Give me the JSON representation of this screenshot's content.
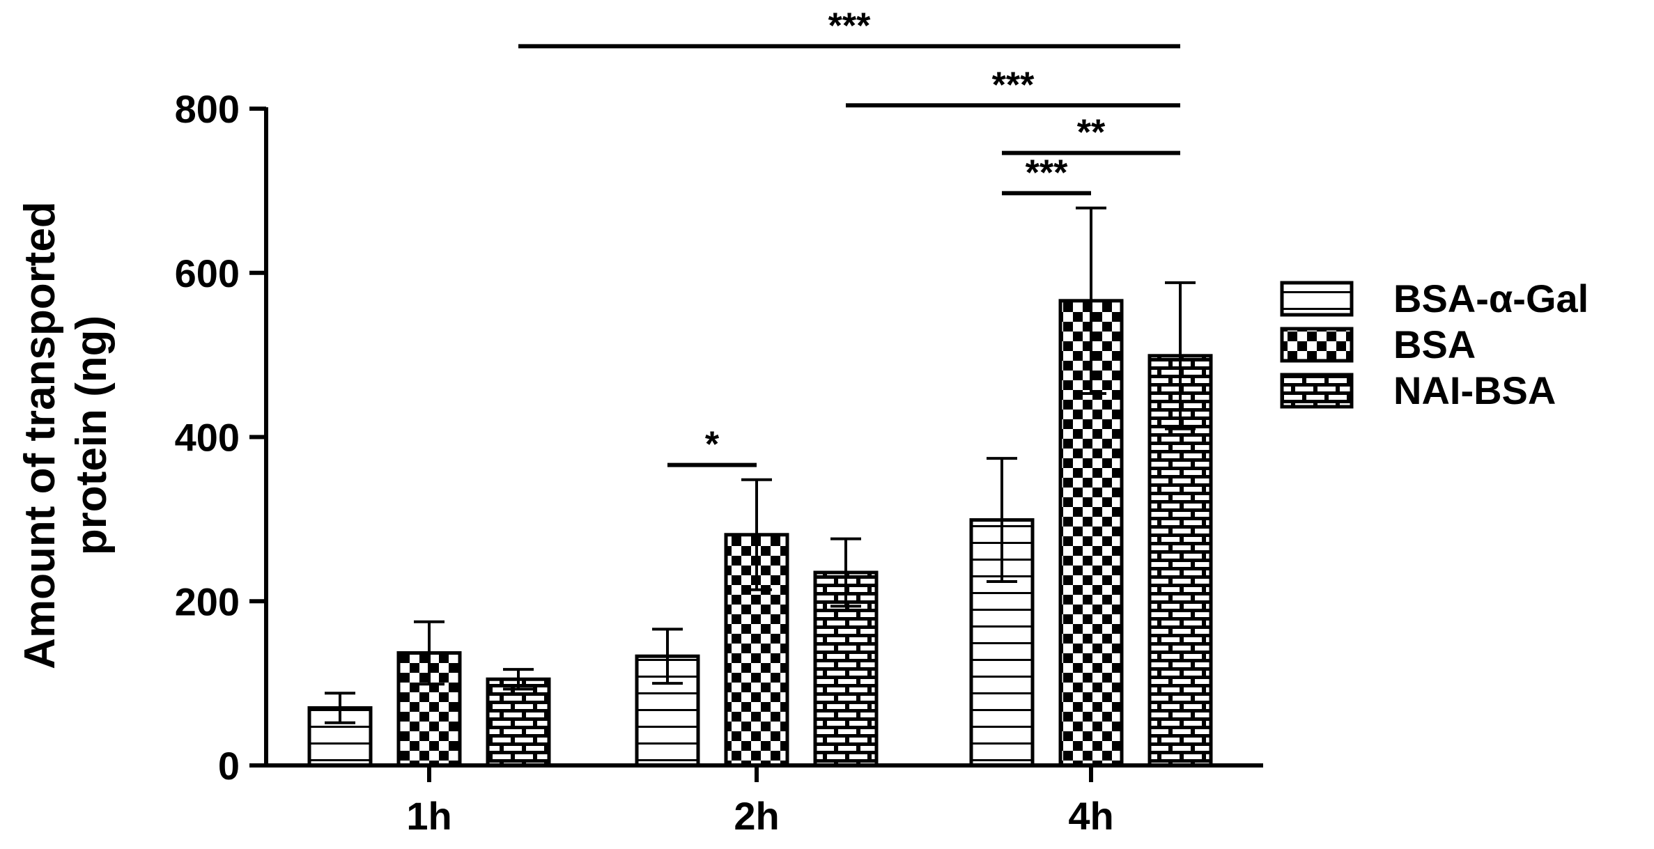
{
  "chart_data": {
    "type": "bar",
    "title": "",
    "xlabel": "",
    "ylabel_lines": [
      "Amount of transported",
      "protein (ng)"
    ],
    "ylim": [
      0,
      800
    ],
    "yticks": [
      "0",
      "200",
      "400",
      "600",
      "800"
    ],
    "categories": [
      "1h",
      "2h",
      "4h"
    ],
    "series": [
      {
        "name": "BSA-α-Gal",
        "pattern": "horizontal-stripes",
        "values": [
          70,
          133,
          299
        ],
        "errors": [
          18,
          33,
          75
        ]
      },
      {
        "name": "BSA",
        "pattern": "checkerboard",
        "values": [
          137,
          281,
          566
        ],
        "errors": [
          38,
          67,
          113
        ]
      },
      {
        "name": "NAI-BSA",
        "pattern": "brick",
        "values": [
          105,
          235,
          499
        ],
        "errors": [
          12,
          41,
          89
        ]
      }
    ],
    "legend_position": "right",
    "significance": [
      {
        "label": "*",
        "from_category": 1,
        "from_series": 0,
        "to_category": 1,
        "to_series": 1,
        "level": 366
      },
      {
        "label": "***",
        "from_category": 0,
        "from_series": 2,
        "to_category": 2,
        "to_series": 2,
        "level": 876
      },
      {
        "label": "***",
        "from_category": 1,
        "from_series": 2,
        "to_category": 2,
        "to_series": 2,
        "level": 804
      },
      {
        "label": "**",
        "from_category": 2,
        "from_series": 0,
        "to_category": 2,
        "to_series": 2,
        "level": 746
      },
      {
        "label": "***",
        "from_category": 2,
        "from_series": 0,
        "to_category": 2,
        "to_series": 1,
        "level": 697
      }
    ],
    "colors": {
      "bar_fill": "#ffffff",
      "pattern": "#000000",
      "axis": "#000000"
    }
  }
}
